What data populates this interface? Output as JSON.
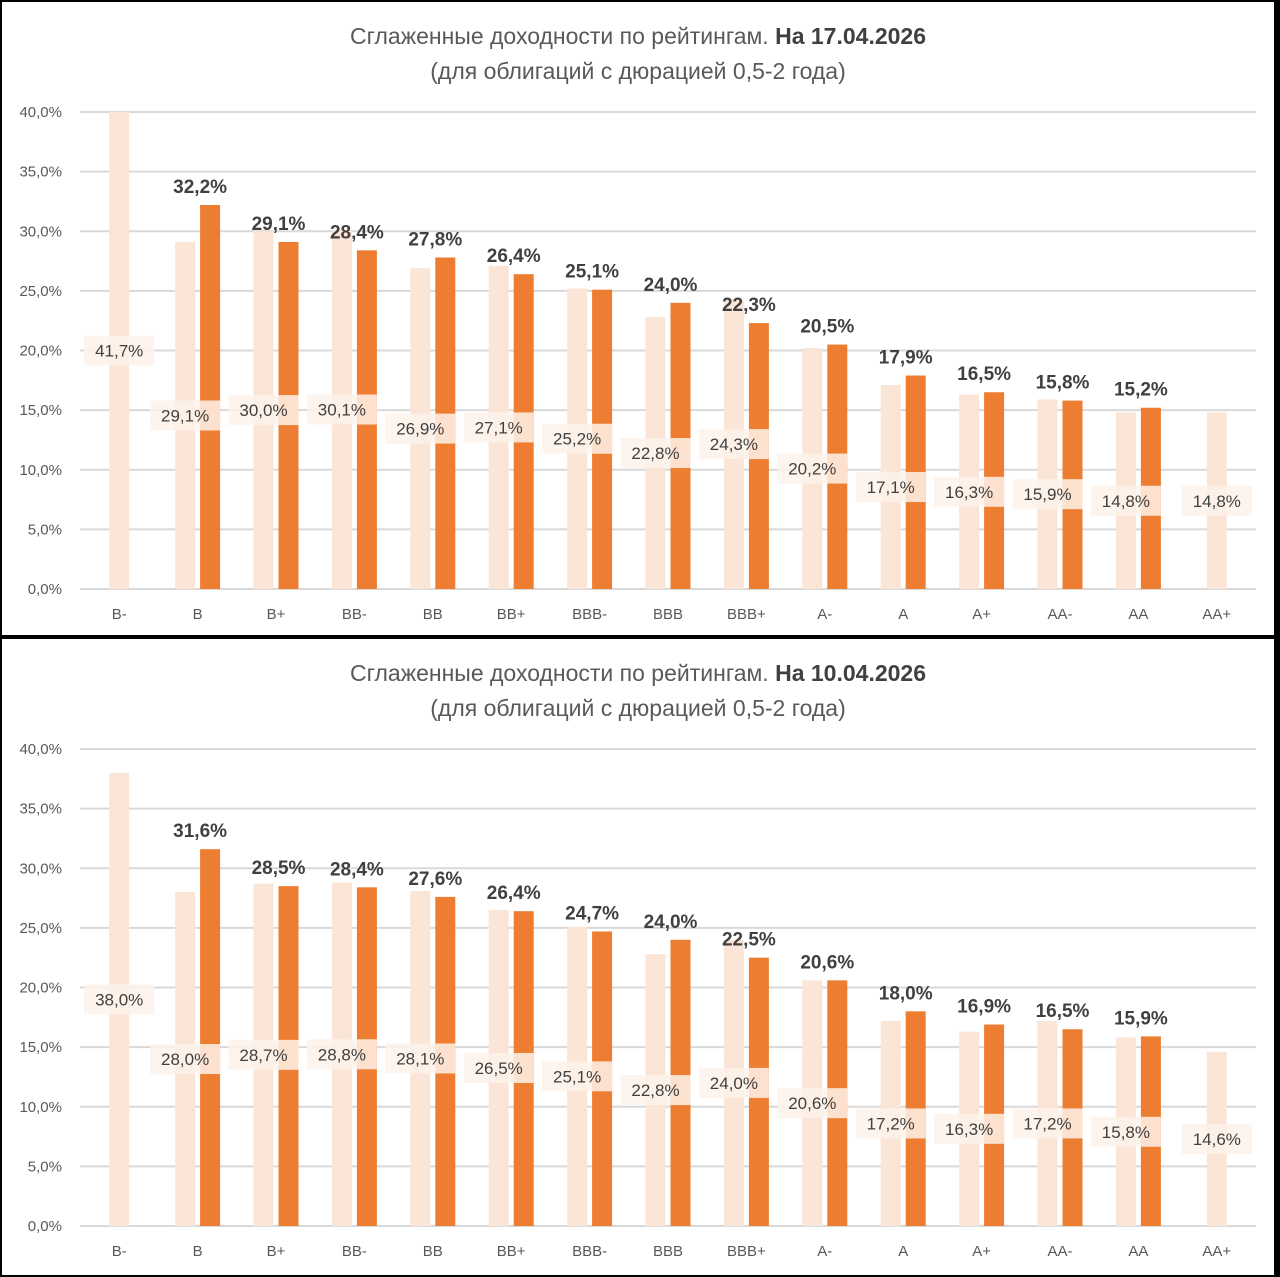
{
  "colors": {
    "current_bar": "#ED7D31",
    "previous_bar": "#FBE5D6",
    "label_bg": "#FDF2EA",
    "gridline": "#D9D9D9",
    "text": "#595959"
  },
  "chart_data": [
    {
      "type": "bar",
      "title": "Сглаженные доходности по рейтингам.",
      "title_bold": "На 17.04.2026",
      "subtitle": "(для облигаций с дюрацией 0,5-2 года)",
      "xlabel": "",
      "ylabel": "",
      "ylim": [
        0,
        40
      ],
      "yticks": [
        "0,0%",
        "5,0%",
        "10,0%",
        "15,0%",
        "20,0%",
        "25,0%",
        "30,0%",
        "35,0%",
        "40,0%"
      ],
      "ytick_values": [
        0,
        5,
        10,
        15,
        20,
        25,
        30,
        35,
        40
      ],
      "grid": true,
      "legend": "none",
      "categories": [
        "B-",
        "B",
        "B+",
        "BB-",
        "BB",
        "BB+",
        "BBB-",
        "BBB",
        "BBB+",
        "A-",
        "A",
        "A+",
        "AA-",
        "AA",
        "AA+"
      ],
      "series": [
        {
          "name": "previous",
          "values": [
            41.7,
            29.1,
            30.0,
            30.1,
            26.9,
            27.1,
            25.2,
            22.8,
            24.3,
            20.2,
            17.1,
            16.3,
            15.9,
            14.8,
            14.8
          ],
          "labels": [
            "41,7%",
            "29,1%",
            "30,0%",
            "30,1%",
            "26,9%",
            "27,1%",
            "25,2%",
            "22,8%",
            "24,3%",
            "20,2%",
            "17,1%",
            "16,3%",
            "15,9%",
            "14,8%",
            "14,8%"
          ]
        },
        {
          "name": "current",
          "values": [
            null,
            32.2,
            29.1,
            28.4,
            27.8,
            26.4,
            25.1,
            24.0,
            22.3,
            20.5,
            17.9,
            16.5,
            15.8,
            15.2,
            null
          ],
          "labels": [
            null,
            "32,2%",
            "29,1%",
            "28,4%",
            "27,8%",
            "26,4%",
            "25,1%",
            "24,0%",
            "22,3%",
            "20,5%",
            "17,9%",
            "16,5%",
            "15,8%",
            "15,2%",
            null
          ]
        }
      ]
    },
    {
      "type": "bar",
      "title": "Сглаженные доходности по рейтингам.",
      "title_bold": "На 10.04.2026",
      "subtitle": "(для облигаций с дюрацией 0,5-2 года)",
      "xlabel": "",
      "ylabel": "",
      "ylim": [
        0,
        40
      ],
      "yticks": [
        "0,0%",
        "5,0%",
        "10,0%",
        "15,0%",
        "20,0%",
        "25,0%",
        "30,0%",
        "35,0%",
        "40,0%"
      ],
      "ytick_values": [
        0,
        5,
        10,
        15,
        20,
        25,
        30,
        35,
        40
      ],
      "grid": true,
      "legend": "none",
      "categories": [
        "B-",
        "B",
        "B+",
        "BB-",
        "BB",
        "BB+",
        "BBB-",
        "BBB",
        "BBB+",
        "A-",
        "A",
        "A+",
        "AA-",
        "AA",
        "AA+"
      ],
      "series": [
        {
          "name": "previous",
          "values": [
            38.0,
            28.0,
            28.7,
            28.8,
            28.1,
            26.5,
            25.1,
            22.8,
            24.0,
            20.6,
            17.2,
            16.3,
            17.2,
            15.8,
            14.6
          ],
          "labels": [
            "38,0%",
            "28,0%",
            "28,7%",
            "28,8%",
            "28,1%",
            "26,5%",
            "25,1%",
            "22,8%",
            "24,0%",
            "20,6%",
            "17,2%",
            "16,3%",
            "17,2%",
            "15,8%",
            "14,6%"
          ]
        },
        {
          "name": "current",
          "values": [
            null,
            31.6,
            28.5,
            28.4,
            27.6,
            26.4,
            24.7,
            24.0,
            22.5,
            20.6,
            18.0,
            16.9,
            16.5,
            15.9,
            null
          ],
          "labels": [
            null,
            "31,6%",
            "28,5%",
            "28,4%",
            "27,6%",
            "26,4%",
            "24,7%",
            "24,0%",
            "22,5%",
            "20,6%",
            "18,0%",
            "16,9%",
            "16,5%",
            "15,9%",
            null
          ]
        }
      ]
    }
  ]
}
